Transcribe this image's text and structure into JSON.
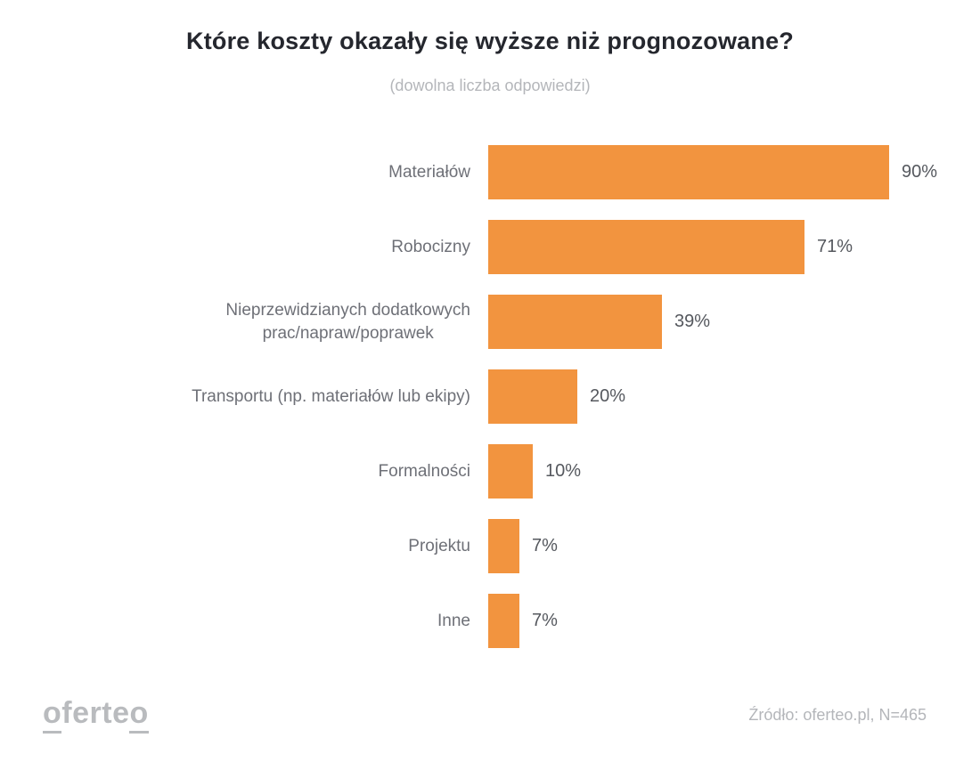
{
  "header": {
    "title": "Które koszty okazały się wyższe niż prognozowane?",
    "subtitle": "(dowolna liczba odpowiedzi)"
  },
  "chart_data": {
    "type": "bar",
    "orientation": "horizontal",
    "title": "Które koszty okazały się wyższe niż prognozowane?",
    "subtitle": "(dowolna liczba odpowiedzi)",
    "categories": [
      "Materiałów",
      "Robocizny",
      "Nieprzewidzianych dodatkowych\nprac/napraw/poprawek",
      "Transportu (np. materiałów lub ekipy)",
      "Formalności",
      "Projektu",
      "Inne"
    ],
    "values": [
      90,
      71,
      39,
      20,
      10,
      7,
      7
    ],
    "value_labels": [
      "90%",
      "71%",
      "39%",
      "20%",
      "10%",
      "7%",
      "7%"
    ],
    "unit": "%",
    "xlim": [
      0,
      100
    ],
    "grid": false,
    "legend": false,
    "bar_color": "#F2943F"
  },
  "footer": {
    "logo": {
      "first_o": "o",
      "middle": "ferte",
      "last_o": "o"
    },
    "source": "Źródło: oferteo.pl, N=465"
  },
  "colors": {
    "bar": "#F2943F",
    "title": "#25272E",
    "category_label": "#6E7077",
    "value_label": "#55585E",
    "muted_text": "#B4B6BA",
    "logo": "#B9BBBE",
    "background": "#FFFFFF"
  }
}
